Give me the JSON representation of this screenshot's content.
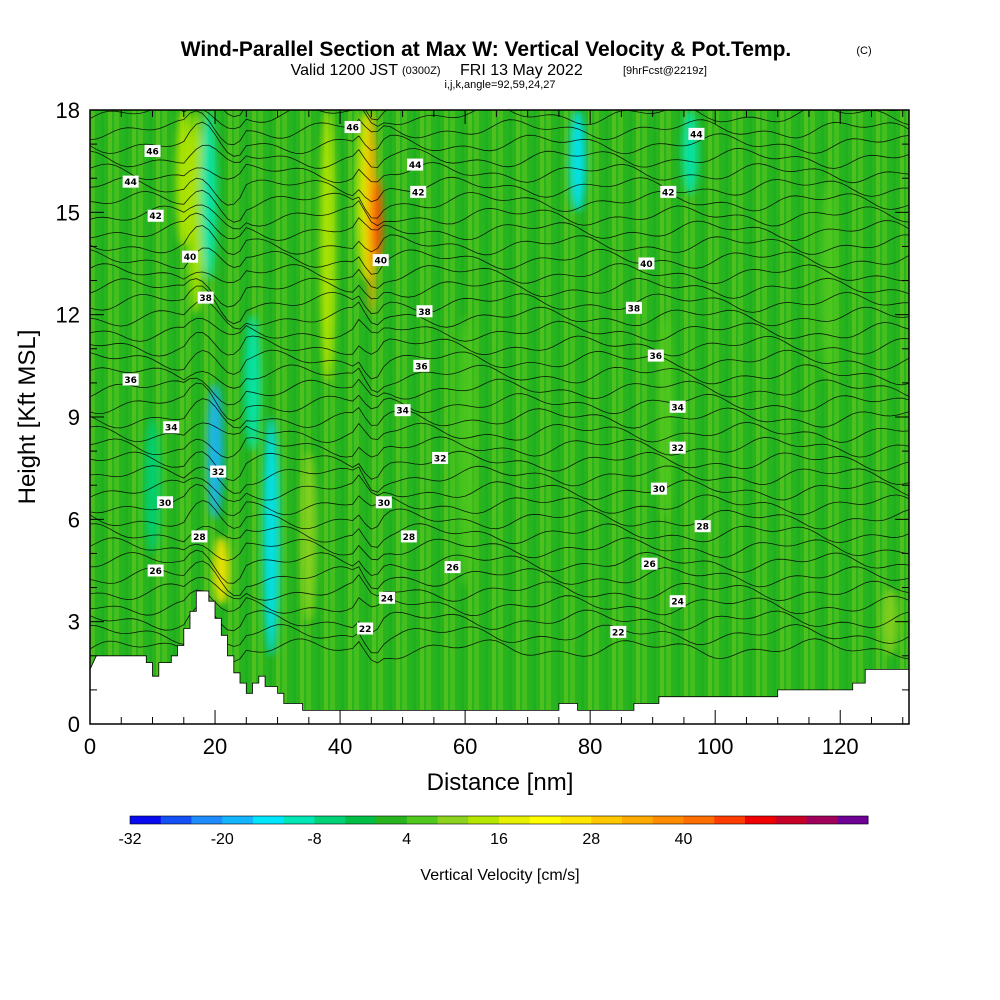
{
  "chart_data": {
    "type": "heatmap",
    "title": {
      "main": "Wind-Parallel Section at Max W: Vertical Velocity & Pot.Temp.",
      "mark": "(C)",
      "valid": "Valid 1200 JST",
      "zulu": "(0300Z)",
      "date": "FRI 13 May 2022",
      "fcst": "[9hrFcst@2219z]",
      "sub": "i,j,k,angle=92,59,24,27"
    },
    "xlabel": "Distance [nm]",
    "ylabel": "Height [Kft MSL]",
    "xlim": [
      0,
      131
    ],
    "ylim": [
      0,
      18
    ],
    "xticks": [
      0,
      20,
      40,
      60,
      80,
      100,
      120
    ],
    "yticks": [
      0,
      3,
      6,
      9,
      12,
      15,
      18
    ],
    "colorbar": {
      "label": "Vertical Velocity [cm/s]",
      "min": -32,
      "step": 4,
      "tick_labels": [
        "-32",
        "-20",
        "-8",
        "4",
        "16",
        "28",
        "40"
      ],
      "colors": [
        "#0a0af0",
        "#1450f5",
        "#1e8cff",
        "#14b4ff",
        "#00e6ff",
        "#00e6b4",
        "#00d278",
        "#00be46",
        "#28b41e",
        "#50c81e",
        "#8cd21e",
        "#b4e600",
        "#e6f000",
        "#ffff00",
        "#ffe600",
        "#ffc800",
        "#ffaa00",
        "#ff8c00",
        "#ff6e00",
        "#ff3c00",
        "#f00000",
        "#c80028",
        "#a0005a",
        "#6e0096"
      ]
    },
    "velocity_field": {
      "background_cm_s": 0,
      "features": [
        {
          "x": 10,
          "ylim": [
            5,
            9
          ],
          "value": -6
        },
        {
          "x": 15,
          "ylim": [
            14,
            18
          ],
          "value": 12
        },
        {
          "x": 17,
          "ylim": [
            12,
            18
          ],
          "value": 14
        },
        {
          "x": 19,
          "ylim": [
            13,
            18
          ],
          "value": -12
        },
        {
          "x": 20,
          "ylim": [
            6,
            10
          ],
          "value": -18
        },
        {
          "x": 21,
          "ylim": [
            3.5,
            5.5
          ],
          "value": 24
        },
        {
          "x": 26,
          "ylim": [
            8,
            12
          ],
          "value": -10
        },
        {
          "x": 29,
          "ylim": [
            2,
            9
          ],
          "value": -14
        },
        {
          "x": 35,
          "ylim": [
            3,
            8
          ],
          "value": 10
        },
        {
          "x": 38,
          "ylim": [
            10,
            18
          ],
          "value": 12
        },
        {
          "x": 44,
          "ylim": [
            13,
            18
          ],
          "value": 18
        },
        {
          "x": 45,
          "ylim": [
            12,
            18
          ],
          "value": 34
        },
        {
          "x": 46,
          "ylim": [
            13.5,
            16
          ],
          "value": 44
        },
        {
          "x": 60,
          "ylim": [
            4,
            12
          ],
          "value": 4
        },
        {
          "x": 78,
          "ylim": [
            15,
            18
          ],
          "value": -14
        },
        {
          "x": 92,
          "ylim": [
            6,
            12
          ],
          "value": 4
        },
        {
          "x": 96,
          "ylim": [
            15.5,
            18
          ],
          "value": -10
        },
        {
          "x": 118,
          "ylim": [
            10,
            16
          ],
          "value": 6
        },
        {
          "x": 128,
          "ylim": [
            2,
            4
          ],
          "value": 8
        }
      ]
    },
    "theta_contours_c": [
      22,
      24,
      26,
      28,
      30,
      32,
      34,
      36,
      38,
      40,
      42,
      44,
      46
    ],
    "contour_labels": [
      {
        "text": "46",
        "x": 42,
        "y": 17.5
      },
      {
        "text": "46",
        "x": 10,
        "y": 16.8
      },
      {
        "text": "44",
        "x": 6.5,
        "y": 15.9
      },
      {
        "text": "44",
        "x": 52,
        "y": 16.4
      },
      {
        "text": "44",
        "x": 97,
        "y": 17.3
      },
      {
        "text": "42",
        "x": 10.5,
        "y": 14.9
      },
      {
        "text": "42",
        "x": 52.5,
        "y": 15.6
      },
      {
        "text": "42",
        "x": 92.5,
        "y": 15.6
      },
      {
        "text": "40",
        "x": 16,
        "y": 13.7
      },
      {
        "text": "40",
        "x": 46.5,
        "y": 13.6
      },
      {
        "text": "40",
        "x": 89,
        "y": 13.5
      },
      {
        "text": "38",
        "x": 18.5,
        "y": 12.5
      },
      {
        "text": "38",
        "x": 53.5,
        "y": 12.1
      },
      {
        "text": "38",
        "x": 87,
        "y": 12.2
      },
      {
        "text": "36",
        "x": 6.5,
        "y": 10.1
      },
      {
        "text": "36",
        "x": 53,
        "y": 10.5
      },
      {
        "text": "36",
        "x": 90.5,
        "y": 10.8
      },
      {
        "text": "34",
        "x": 13,
        "y": 8.7
      },
      {
        "text": "34",
        "x": 50,
        "y": 9.2
      },
      {
        "text": "34",
        "x": 94,
        "y": 9.3
      },
      {
        "text": "32",
        "x": 20.5,
        "y": 7.4
      },
      {
        "text": "32",
        "x": 56,
        "y": 7.8
      },
      {
        "text": "32",
        "x": 94,
        "y": 8.1
      },
      {
        "text": "30",
        "x": 12,
        "y": 6.5
      },
      {
        "text": "30",
        "x": 47,
        "y": 6.5
      },
      {
        "text": "30",
        "x": 91,
        "y": 6.9
      },
      {
        "text": "28",
        "x": 17.5,
        "y": 5.5
      },
      {
        "text": "28",
        "x": 51,
        "y": 5.5
      },
      {
        "text": "28",
        "x": 98,
        "y": 5.8
      },
      {
        "text": "26",
        "x": 10.5,
        "y": 4.5
      },
      {
        "text": "26",
        "x": 58,
        "y": 4.6
      },
      {
        "text": "26",
        "x": 89.5,
        "y": 4.7
      },
      {
        "text": "24",
        "x": 47.5,
        "y": 3.7
      },
      {
        "text": "24",
        "x": 94,
        "y": 3.6
      },
      {
        "text": "22",
        "x": 44,
        "y": 2.8
      },
      {
        "text": "22",
        "x": 84.5,
        "y": 2.7
      }
    ],
    "terrain_kft": [
      [
        0,
        1.6
      ],
      [
        1,
        2.0
      ],
      [
        9,
        2.0
      ],
      [
        9,
        1.8
      ],
      [
        10,
        1.8
      ],
      [
        10,
        1.4
      ],
      [
        11,
        1.4
      ],
      [
        11,
        1.8
      ],
      [
        13,
        1.8
      ],
      [
        13,
        2.0
      ],
      [
        14,
        2.0
      ],
      [
        14,
        2.3
      ],
      [
        15,
        2.3
      ],
      [
        15,
        2.8
      ],
      [
        16,
        2.8
      ],
      [
        16,
        3.3
      ],
      [
        17,
        3.3
      ],
      [
        17,
        3.9
      ],
      [
        19,
        3.9
      ],
      [
        19,
        3.6
      ],
      [
        20,
        3.6
      ],
      [
        20,
        3.1
      ],
      [
        21,
        3.1
      ],
      [
        21,
        2.6
      ],
      [
        22,
        2.6
      ],
      [
        22,
        2.0
      ],
      [
        23,
        2.0
      ],
      [
        23,
        1.5
      ],
      [
        24,
        1.5
      ],
      [
        24,
        1.2
      ],
      [
        25,
        1.2
      ],
      [
        25,
        0.9
      ],
      [
        26,
        0.9
      ],
      [
        26,
        1.2
      ],
      [
        27,
        1.2
      ],
      [
        27,
        1.4
      ],
      [
        28,
        1.4
      ],
      [
        28,
        1.1
      ],
      [
        30,
        1.1
      ],
      [
        30,
        0.9
      ],
      [
        31,
        0.9
      ],
      [
        31,
        0.6
      ],
      [
        34,
        0.6
      ],
      [
        34,
        0.4
      ],
      [
        75,
        0.4
      ],
      [
        75,
        0.6
      ],
      [
        78,
        0.6
      ],
      [
        78,
        0.4
      ],
      [
        87,
        0.4
      ],
      [
        87,
        0.6
      ],
      [
        91,
        0.6
      ],
      [
        91,
        0.8
      ],
      [
        110,
        0.8
      ],
      [
        110,
        1.0
      ],
      [
        122,
        1.0
      ],
      [
        122,
        1.2
      ],
      [
        124,
        1.2
      ],
      [
        124,
        1.6
      ],
      [
        131,
        1.6
      ]
    ]
  }
}
